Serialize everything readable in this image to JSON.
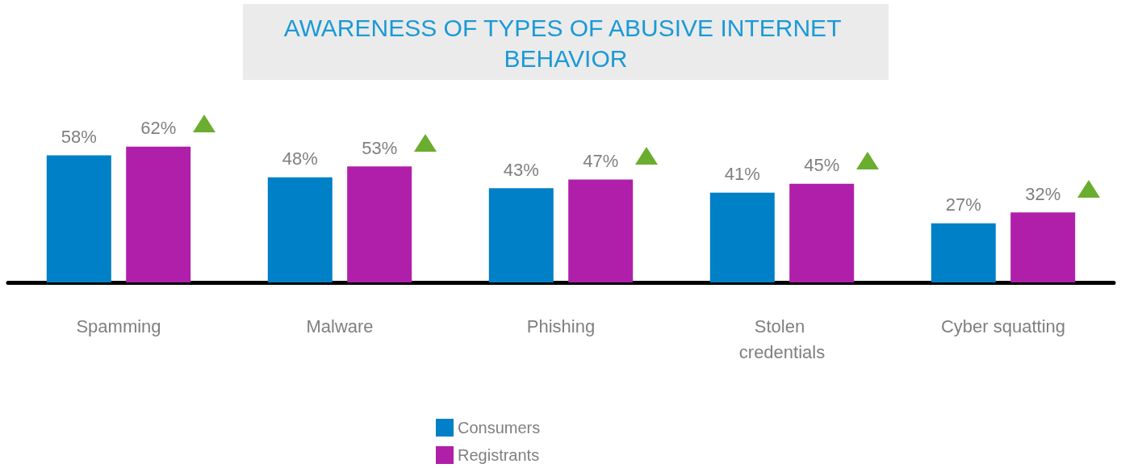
{
  "chart_data": {
    "type": "bar",
    "title": "AWARENESS OF TYPES OF ABUSIVE INTERNET BEHAVIOR",
    "categories": [
      "Spamming",
      "Malware",
      "Phishing",
      "Stolen credentials",
      "Cyber squatting"
    ],
    "series": [
      {
        "name": "Consumers",
        "color": "#0080c6",
        "values": [
          58,
          48,
          43,
          41,
          27
        ],
        "value_labels": [
          "58%",
          "48%",
          "43%",
          "41%",
          "27%"
        ]
      },
      {
        "name": "Registrants",
        "color": "#b01faa",
        "values": [
          62,
          53,
          47,
          45,
          32
        ],
        "value_labels": [
          "62%",
          "53%",
          "47%",
          "45%",
          "32%"
        ]
      }
    ],
    "legend": "bottom"
  }
}
